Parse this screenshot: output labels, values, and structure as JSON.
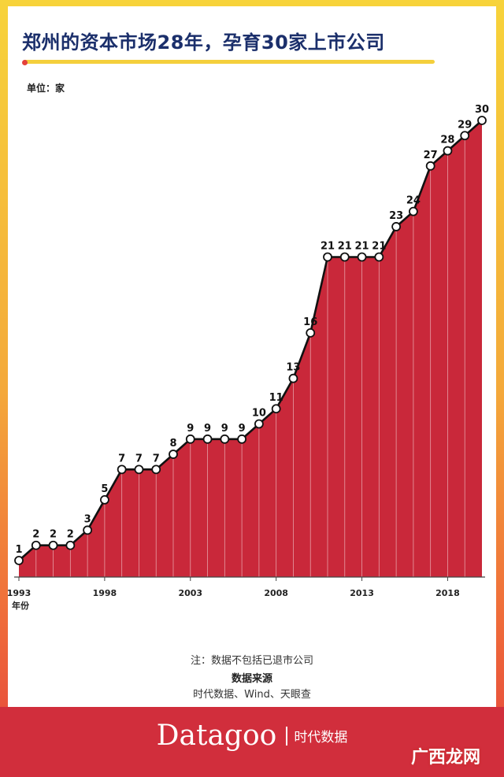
{
  "title": "郑州的资本市场28年，孕育30家上市公司",
  "unit_label": "单位：家",
  "x_axis_label": "年份",
  "footnote": "注：数据不包括已退市公司",
  "source_heading": "数据来源",
  "source_text": "时代数据、Wind、天眼查",
  "brand": {
    "name": "Datagoo",
    "cn": "时代数据"
  },
  "watermark": "广西龙网",
  "colors": {
    "area": "#c9283a",
    "line": "#111111",
    "title": "#1b2f6b",
    "accent": "#f4cf3c",
    "footer": "#d12e3c"
  },
  "chart_data": {
    "type": "area",
    "x": [
      1993,
      1994,
      1995,
      1996,
      1997,
      1998,
      1999,
      2000,
      2001,
      2002,
      2003,
      2004,
      2005,
      2006,
      2007,
      2008,
      2009,
      2010,
      2011,
      2012,
      2013,
      2014,
      2015,
      2016,
      2017,
      2018,
      2019,
      2020
    ],
    "values": [
      1,
      2,
      2,
      2,
      3,
      5,
      7,
      7,
      7,
      8,
      9,
      9,
      9,
      9,
      10,
      11,
      13,
      16,
      21,
      21,
      21,
      21,
      23,
      24,
      27,
      28,
      29,
      30
    ],
    "x_tick_labels": [
      "1993",
      "1998",
      "2003",
      "2008",
      "2013",
      "2018"
    ],
    "ylim": [
      0,
      30
    ],
    "data_labels": true,
    "grid": false
  }
}
